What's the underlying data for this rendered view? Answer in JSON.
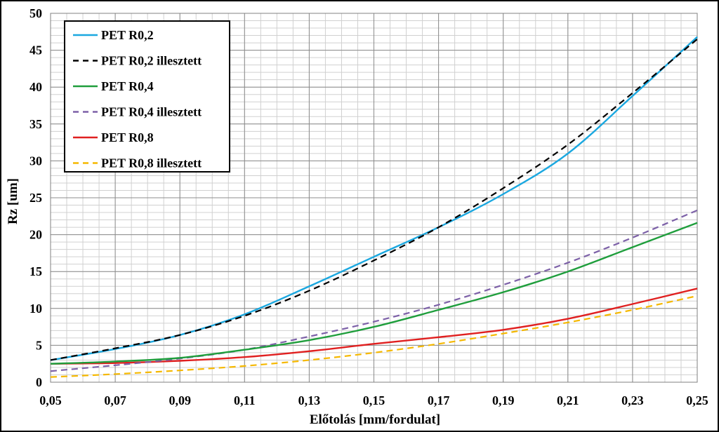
{
  "chart_data": {
    "type": "line",
    "xlabel": "Előtolás [mm/fordulat]",
    "ylabel": "Rz [um]",
    "xlim": [
      0.05,
      0.25
    ],
    "ylim": [
      0,
      50
    ],
    "x_ticks": [
      "0,05",
      "0,07",
      "0,09",
      "0,11",
      "0,13",
      "0,15",
      "0,17",
      "0,19",
      "0,21",
      "0,23",
      "0,25"
    ],
    "y_ticks": [
      "0",
      "5",
      "10",
      "15",
      "20",
      "25",
      "30",
      "35",
      "40",
      "45",
      "50"
    ],
    "grid": true,
    "legend_position": "top-left",
    "series": [
      {
        "name": "PET R0,2",
        "style": "solid",
        "color": "#1ba8e0",
        "x": [
          0.05,
          0.07,
          0.09,
          0.11,
          0.13,
          0.15,
          0.17,
          0.19,
          0.21,
          0.23,
          0.25
        ],
        "y": [
          3.0,
          4.5,
          6.4,
          9.2,
          13.0,
          17.0,
          21.0,
          25.5,
          31.0,
          38.8,
          46.8
        ]
      },
      {
        "name": "PET R0,2 illesztett",
        "style": "dashed",
        "color": "#000000",
        "x": [
          0.05,
          0.07,
          0.09,
          0.11,
          0.13,
          0.15,
          0.17,
          0.19,
          0.21,
          0.23,
          0.25
        ],
        "y": [
          3.0,
          4.6,
          6.4,
          9.0,
          12.4,
          16.5,
          21.0,
          26.3,
          32.2,
          39.2,
          46.5
        ]
      },
      {
        "name": "PET R0,4",
        "style": "solid",
        "color": "#1f9e3c",
        "x": [
          0.05,
          0.07,
          0.09,
          0.11,
          0.13,
          0.15,
          0.17,
          0.19,
          0.21,
          0.23,
          0.25
        ],
        "y": [
          2.5,
          2.8,
          3.3,
          4.4,
          5.7,
          7.5,
          9.8,
          12.2,
          15.0,
          18.3,
          21.6
        ]
      },
      {
        "name": "PET R0,4 illesztett",
        "style": "dashed",
        "color": "#7d61a8",
        "x": [
          0.05,
          0.07,
          0.09,
          0.11,
          0.13,
          0.15,
          0.17,
          0.19,
          0.21,
          0.23,
          0.25
        ],
        "y": [
          1.5,
          2.3,
          3.2,
          4.4,
          6.2,
          8.2,
          10.5,
          13.2,
          16.2,
          19.6,
          23.3
        ]
      },
      {
        "name": "PET R0,8",
        "style": "solid",
        "color": "#e02020",
        "x": [
          0.05,
          0.07,
          0.09,
          0.11,
          0.13,
          0.15,
          0.17,
          0.19,
          0.21,
          0.23,
          0.25
        ],
        "y": [
          2.5,
          2.6,
          2.9,
          3.4,
          4.2,
          5.2,
          6.1,
          7.1,
          8.6,
          10.6,
          12.7
        ]
      },
      {
        "name": "PET R0,8 illesztett",
        "style": "dashed",
        "color": "#f5b800",
        "x": [
          0.05,
          0.07,
          0.09,
          0.11,
          0.13,
          0.15,
          0.17,
          0.19,
          0.21,
          0.23,
          0.25
        ],
        "y": [
          0.7,
          1.1,
          1.6,
          2.2,
          3.0,
          4.0,
          5.2,
          6.6,
          8.1,
          9.8,
          11.7
        ]
      }
    ]
  }
}
